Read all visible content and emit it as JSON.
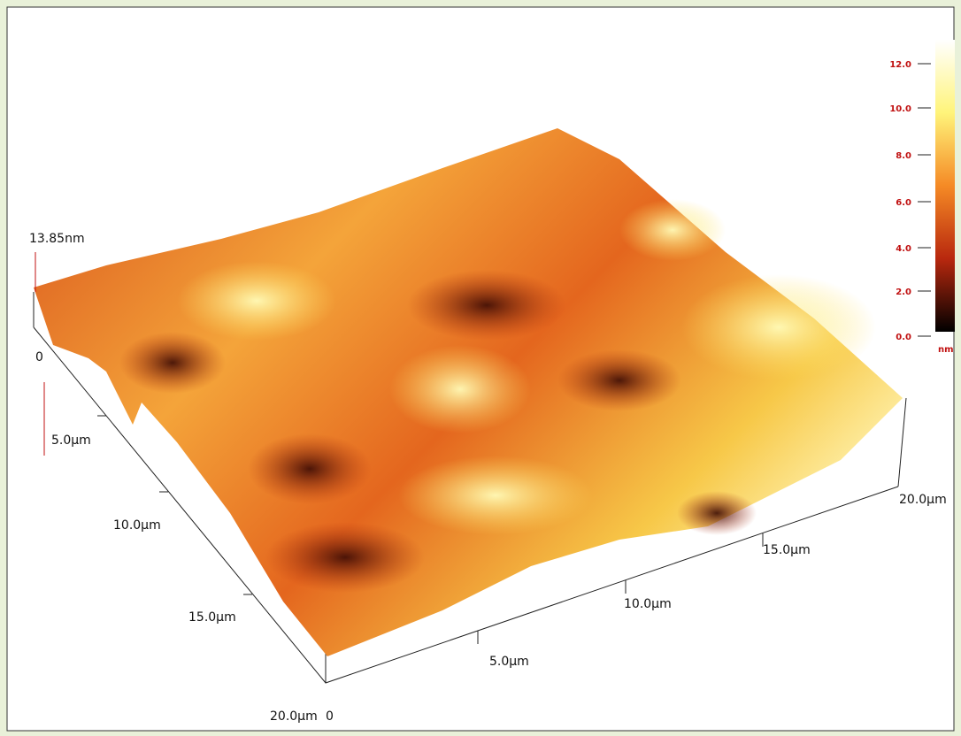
{
  "surface": {
    "height_label": "13.85nm",
    "left_axis": {
      "origin": "0",
      "ticks": [
        "5.0µm",
        "10.0µm",
        "15.0µm",
        "20.0µm"
      ]
    },
    "front_axis": {
      "origin": "0",
      "ticks": [
        "5.0µm",
        "10.0µm",
        "15.0µm",
        "20.0µm"
      ]
    }
  },
  "colorbar": {
    "ticks": [
      "12.0",
      "10.0",
      "8.0",
      "6.0",
      "4.0",
      "2.0",
      "0.0"
    ],
    "unit": "nm"
  }
}
